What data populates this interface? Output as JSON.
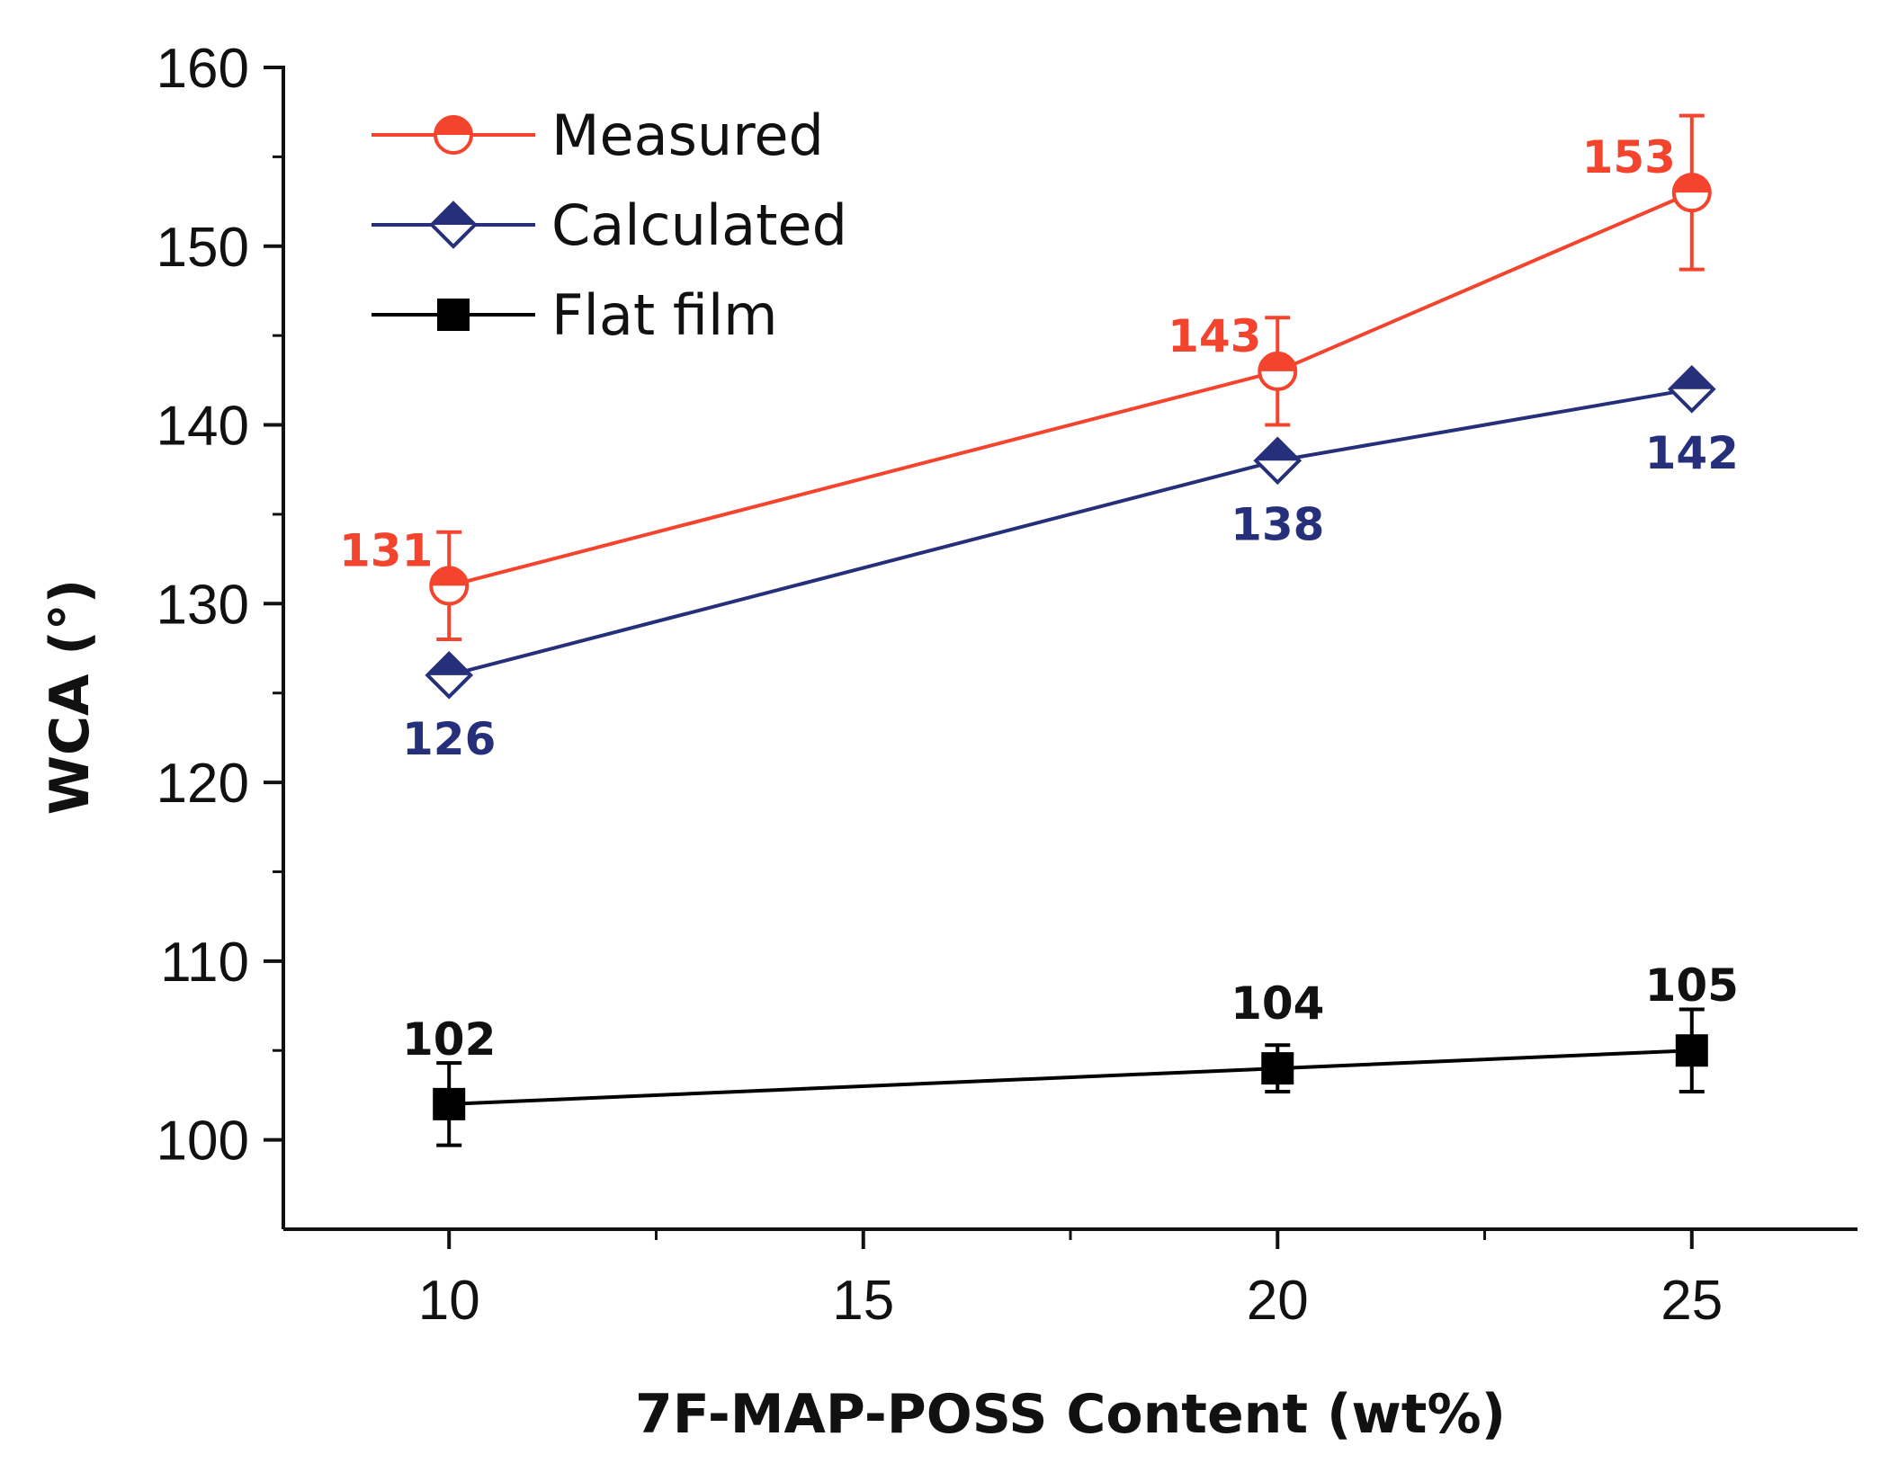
{
  "chart_data": {
    "type": "line",
    "title": "",
    "xlabel": "7F-MAP-POSS Content (wt%)",
    "ylabel": "WCA (°)",
    "xlim": [
      8,
      27
    ],
    "ylim": [
      95,
      160
    ],
    "xticks": [
      10,
      15,
      20,
      25
    ],
    "xtick_labels": [
      "10",
      "15",
      "20",
      "25"
    ],
    "yticks": [
      100,
      110,
      120,
      130,
      140,
      150,
      160
    ],
    "ytick_labels": [
      "100",
      "110",
      "120",
      "130",
      "140",
      "150",
      "160"
    ],
    "grid": false,
    "legend_position": "top-left",
    "series": [
      {
        "name": "Measured",
        "color": "#f4442e",
        "marker": "half-filled-circle",
        "x": [
          10,
          20,
          25
        ],
        "y": [
          131,
          143,
          153
        ],
        "error": [
          3,
          3,
          4.3
        ],
        "labels": [
          "131",
          "143",
          "153"
        ]
      },
      {
        "name": "Calculated",
        "color": "#26307a",
        "marker": "half-filled-diamond",
        "x": [
          10,
          20,
          25
        ],
        "y": [
          126,
          138,
          142
        ],
        "labels": [
          "126",
          "138",
          "142"
        ]
      },
      {
        "name": "Flat film",
        "color": "#000000",
        "marker": "square",
        "x": [
          10,
          20,
          25
        ],
        "y": [
          102,
          104,
          105
        ],
        "error": [
          2.3,
          1.3,
          2.3
        ],
        "labels": [
          "102",
          "104",
          "105"
        ]
      }
    ]
  }
}
